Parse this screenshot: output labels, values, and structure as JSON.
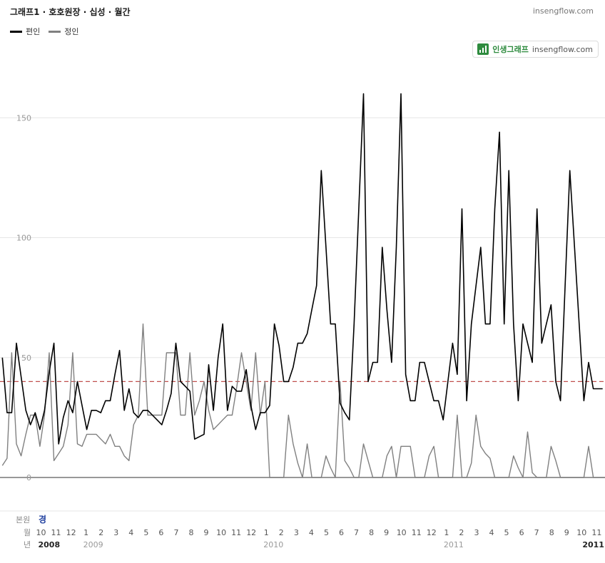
{
  "header": {
    "title": "그래프1 · 호호원장 · 십성 · 월간",
    "site": "insengflow.com"
  },
  "legend": [
    {
      "label": "편인",
      "color": "#000000"
    },
    {
      "label": "정인",
      "color": "#808080"
    }
  ],
  "badge": {
    "brand": "인생그래프",
    "site": "insengflow.com"
  },
  "colors": {
    "reference_line": "#c0504d",
    "grid": "#e6e6e6"
  },
  "bottom_labels": {
    "row1_label": "본원",
    "row1_value": "경",
    "row2_label": "월",
    "row3_label": "년"
  },
  "chart_data": {
    "type": "line",
    "x_unit": "month",
    "ylim": [
      0,
      160
    ],
    "yticks": [
      0,
      50,
      100,
      150
    ],
    "reference_line": 40,
    "grid": true,
    "month_ticks": [
      "10",
      "11",
      "12",
      "1",
      "2",
      "3",
      "4",
      "5",
      "6",
      "7",
      "8",
      "9",
      "10",
      "11",
      "12",
      "1",
      "2",
      "3",
      "4",
      "5",
      "6",
      "7",
      "8",
      "9",
      "10",
      "11",
      "12",
      "1",
      "2",
      "3",
      "4",
      "5",
      "6",
      "7",
      "8",
      "9",
      "10",
      "11"
    ],
    "month_ticks_start": "2008-10",
    "year_ticks": [
      {
        "label": "2008",
        "at": "2008-10",
        "bold": true
      },
      {
        "label": "2009",
        "at": "2009-01",
        "bold": false
      },
      {
        "label": "2010",
        "at": "2010-01",
        "bold": false
      },
      {
        "label": "2011",
        "at": "2011-01",
        "bold": false
      },
      {
        "label": "2011",
        "at": "2011-11",
        "bold": true
      }
    ],
    "series": [
      {
        "name": "편인",
        "color": "#000000",
        "values": [
          50,
          27,
          27,
          56,
          42,
          28,
          22,
          27,
          20,
          28,
          44,
          56,
          14,
          25,
          32,
          27,
          40,
          30,
          20,
          28,
          28,
          27,
          32,
          32,
          43,
          53,
          28,
          37,
          27,
          25,
          28,
          28,
          26,
          24,
          22,
          28,
          35,
          56,
          40,
          38,
          36,
          16,
          17,
          18,
          47,
          28,
          50,
          64,
          28,
          38,
          36,
          36,
          45,
          30,
          20,
          27,
          27,
          30,
          64,
          55,
          40,
          40,
          46,
          56,
          56,
          60,
          70,
          80,
          128,
          96,
          64,
          64,
          31,
          27,
          24,
          64,
          112,
          160,
          40,
          48,
          48,
          96,
          70,
          48,
          96,
          160,
          43,
          32,
          32,
          48,
          48,
          40,
          32,
          32,
          24,
          40,
          56,
          43,
          112,
          32,
          64,
          80,
          96,
          64,
          64,
          112,
          144,
          64,
          128,
          64,
          32,
          64,
          56,
          48,
          112,
          56,
          64,
          72,
          40,
          32,
          80,
          128,
          96,
          64,
          32,
          48,
          37,
          37,
          37
        ]
      },
      {
        "name": "정인",
        "color": "#808080",
        "values": [
          5,
          8,
          52,
          14,
          9,
          18,
          26,
          26,
          13,
          26,
          52,
          7,
          10,
          13,
          22,
          52,
          14,
          13,
          18,
          18,
          18,
          16,
          14,
          18,
          13,
          13,
          9,
          7,
          22,
          26,
          64,
          26,
          26,
          26,
          26,
          52,
          52,
          52,
          26,
          26,
          52,
          26,
          32,
          40,
          28,
          20,
          22,
          24,
          26,
          26,
          38,
          52,
          40,
          28,
          52,
          26,
          40,
          0,
          0,
          0,
          0,
          26,
          14,
          6,
          0,
          14,
          0,
          0,
          0,
          9,
          4,
          0,
          40,
          7,
          4,
          0,
          0,
          14,
          7,
          0,
          0,
          0,
          9,
          13,
          0,
          13,
          13,
          13,
          0,
          0,
          0,
          9,
          13,
          0,
          0,
          0,
          0,
          26,
          0,
          0,
          6,
          26,
          13,
          10,
          8,
          0,
          0,
          0,
          0,
          9,
          4,
          0,
          19,
          2,
          0,
          0,
          0,
          13,
          7,
          0,
          0,
          0,
          0,
          0,
          0,
          13,
          0,
          0,
          0,
          0
        ]
      }
    ]
  }
}
